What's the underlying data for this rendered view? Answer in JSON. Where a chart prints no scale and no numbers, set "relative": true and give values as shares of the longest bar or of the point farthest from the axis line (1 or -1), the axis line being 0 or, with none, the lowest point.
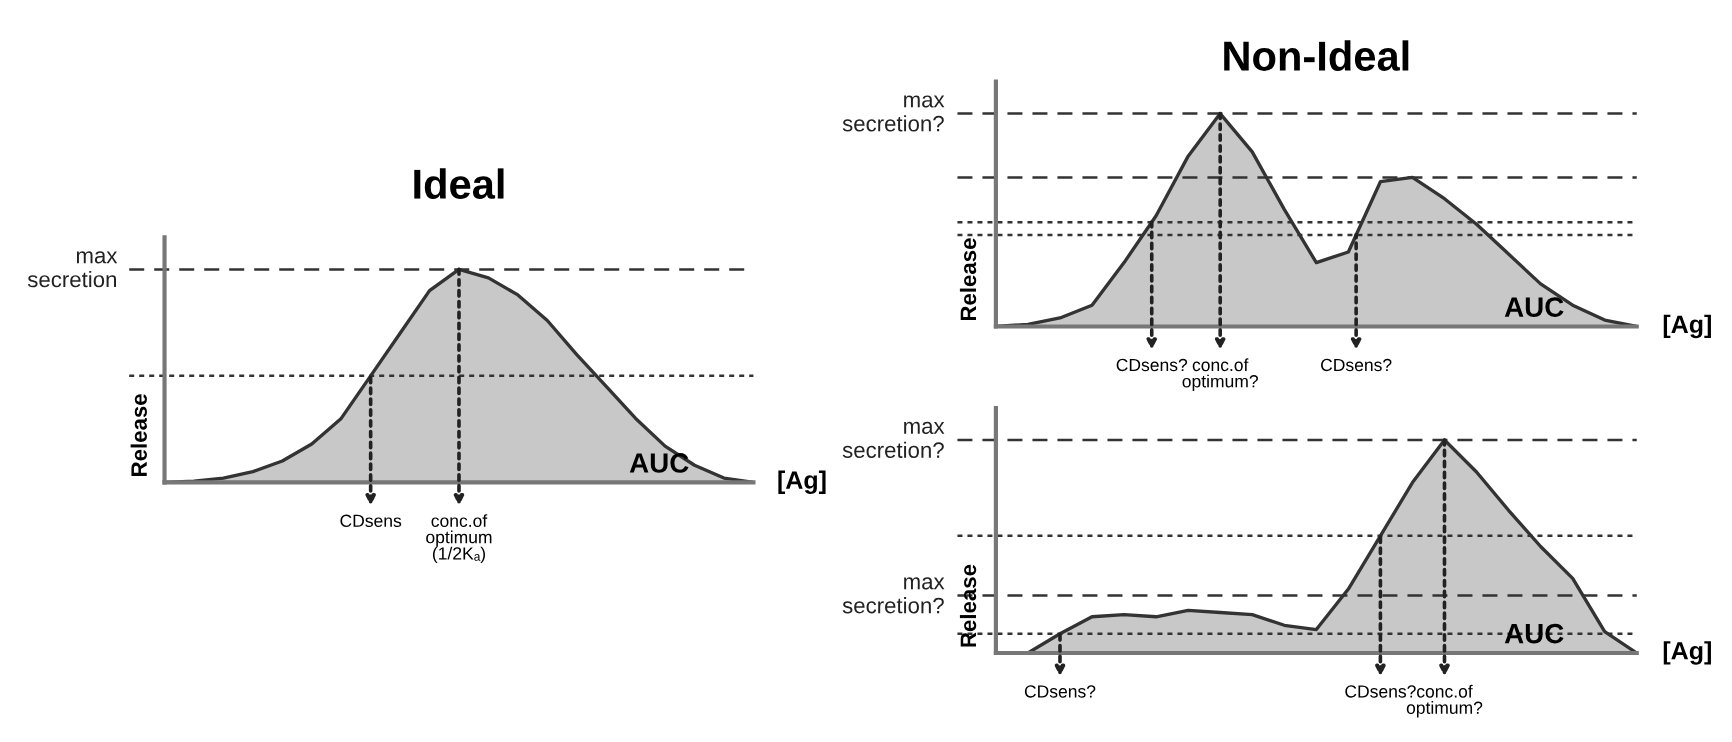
{
  "chart_data": [
    {
      "type": "area",
      "title": "Ideal",
      "xlabel": "[Ag]",
      "ylabel": "Release",
      "relative": true,
      "color": "#c8c8c8",
      "categories": [
        null,
        null,
        null,
        null,
        null,
        null,
        null,
        null,
        null,
        null,
        null,
        null,
        null,
        null,
        null,
        null,
        null,
        null,
        null,
        null,
        null
      ],
      "values": [
        0,
        0.005,
        0.02,
        0.05,
        0.1,
        0.18,
        0.3,
        0.5,
        0.7,
        0.9,
        1.0,
        0.96,
        0.88,
        0.76,
        0.6,
        0.45,
        0.3,
        0.17,
        0.08,
        0.02,
        0
      ],
      "ref_lines": [
        {
          "axis": "y",
          "value": 1.0,
          "label": "max\nsecretion",
          "line_style": "dashed"
        },
        {
          "axis": "y",
          "value": 0.5,
          "label": null,
          "line_style": "dotted"
        }
      ],
      "annotations": [
        "AUC",
        {
          "text": "CDsens",
          "y": 0.5
        },
        {
          "text": "conc.of\noptimum\n(1/2Kₐ)",
          "y": 1.0
        }
      ]
    },
    {
      "type": "area",
      "title": "Non-Ideal",
      "xlabel": "[Ag]",
      "ylabel": "Release",
      "relative": true,
      "color": "#c8c8c8",
      "categories": [
        null,
        null,
        null,
        null,
        null,
        null,
        null,
        null,
        null,
        null,
        null,
        null,
        null,
        null,
        null,
        null,
        null,
        null,
        null,
        null,
        null
      ],
      "values": [
        0,
        0.01,
        0.04,
        0.1,
        0.3,
        0.52,
        0.8,
        1.0,
        0.82,
        0.55,
        0.3,
        0.35,
        0.68,
        0.7,
        0.6,
        0.48,
        0.34,
        0.2,
        0.1,
        0.03,
        0
      ],
      "ref_lines": [
        {
          "axis": "y",
          "value": 1.0,
          "label": "max\nsecretion?",
          "line_style": "dashed"
        },
        {
          "axis": "y",
          "value": 0.7,
          "label": null,
          "line_style": "dashed"
        },
        {
          "axis": "y",
          "value": 0.49,
          "label": null,
          "line_style": "dotted"
        },
        {
          "axis": "y",
          "value": 0.43,
          "label": null,
          "line_style": "dotted"
        }
      ],
      "annotations": [
        "AUC",
        {
          "text": "CDsens?",
          "y": 0.49
        },
        {
          "text": "conc.of\noptimum?",
          "y": 1.0
        },
        {
          "text": "CDsens?",
          "y": 0.43
        }
      ]
    },
    {
      "type": "area",
      "xlabel": "[Ag]",
      "ylabel": "Release",
      "relative": true,
      "color": "#c8c8c8",
      "categories": [
        null,
        null,
        null,
        null,
        null,
        null,
        null,
        null,
        null,
        null,
        null,
        null,
        null,
        null,
        null,
        null,
        null,
        null,
        null,
        null,
        null
      ],
      "values": [
        0,
        0,
        0.09,
        0.17,
        0.18,
        0.17,
        0.2,
        0.19,
        0.18,
        0.13,
        0.11,
        0.3,
        0.55,
        0.8,
        1.0,
        0.85,
        0.67,
        0.5,
        0.35,
        0.1,
        0
      ],
      "ref_lines": [
        {
          "axis": "y",
          "value": 1.0,
          "label": "max\nsecretion?",
          "line_style": "dashed"
        },
        {
          "axis": "y",
          "value": 0.27,
          "label": "max\nsecretion?",
          "line_style": "dashed"
        },
        {
          "axis": "y",
          "value": 0.55,
          "label": null,
          "line_style": "dotted"
        },
        {
          "axis": "y",
          "value": 0.09,
          "label": null,
          "line_style": "dotted"
        }
      ],
      "annotations": [
        "AUC",
        {
          "text": "CDsens?",
          "y": 0.09
        },
        {
          "text": "CDsens?",
          "y": 0.55
        },
        {
          "text": "conc.of\noptimum?",
          "y": 1.0
        }
      ]
    }
  ]
}
